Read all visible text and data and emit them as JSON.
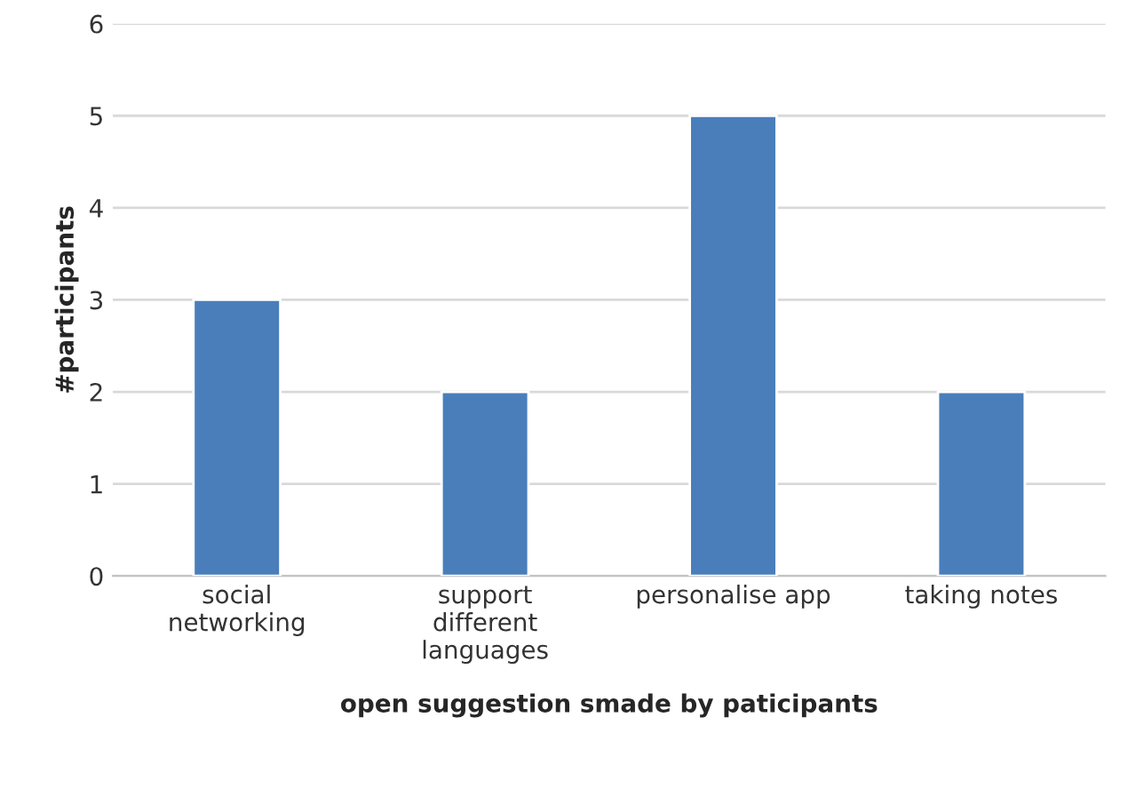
{
  "chart_data": {
    "type": "bar",
    "xlabel": "open suggestion smade by paticipants",
    "ylabel": "#participants",
    "categories": [
      "social\nnetworking",
      "support\ndifferent\nlanguages",
      "personalise app",
      "taking notes"
    ],
    "values": [
      3,
      2,
      5,
      2
    ],
    "color": "#4a7ebb",
    "ylim": [
      0,
      6
    ],
    "yticks": [
      0,
      1,
      2,
      3,
      4,
      5,
      6
    ],
    "grid": "y"
  }
}
